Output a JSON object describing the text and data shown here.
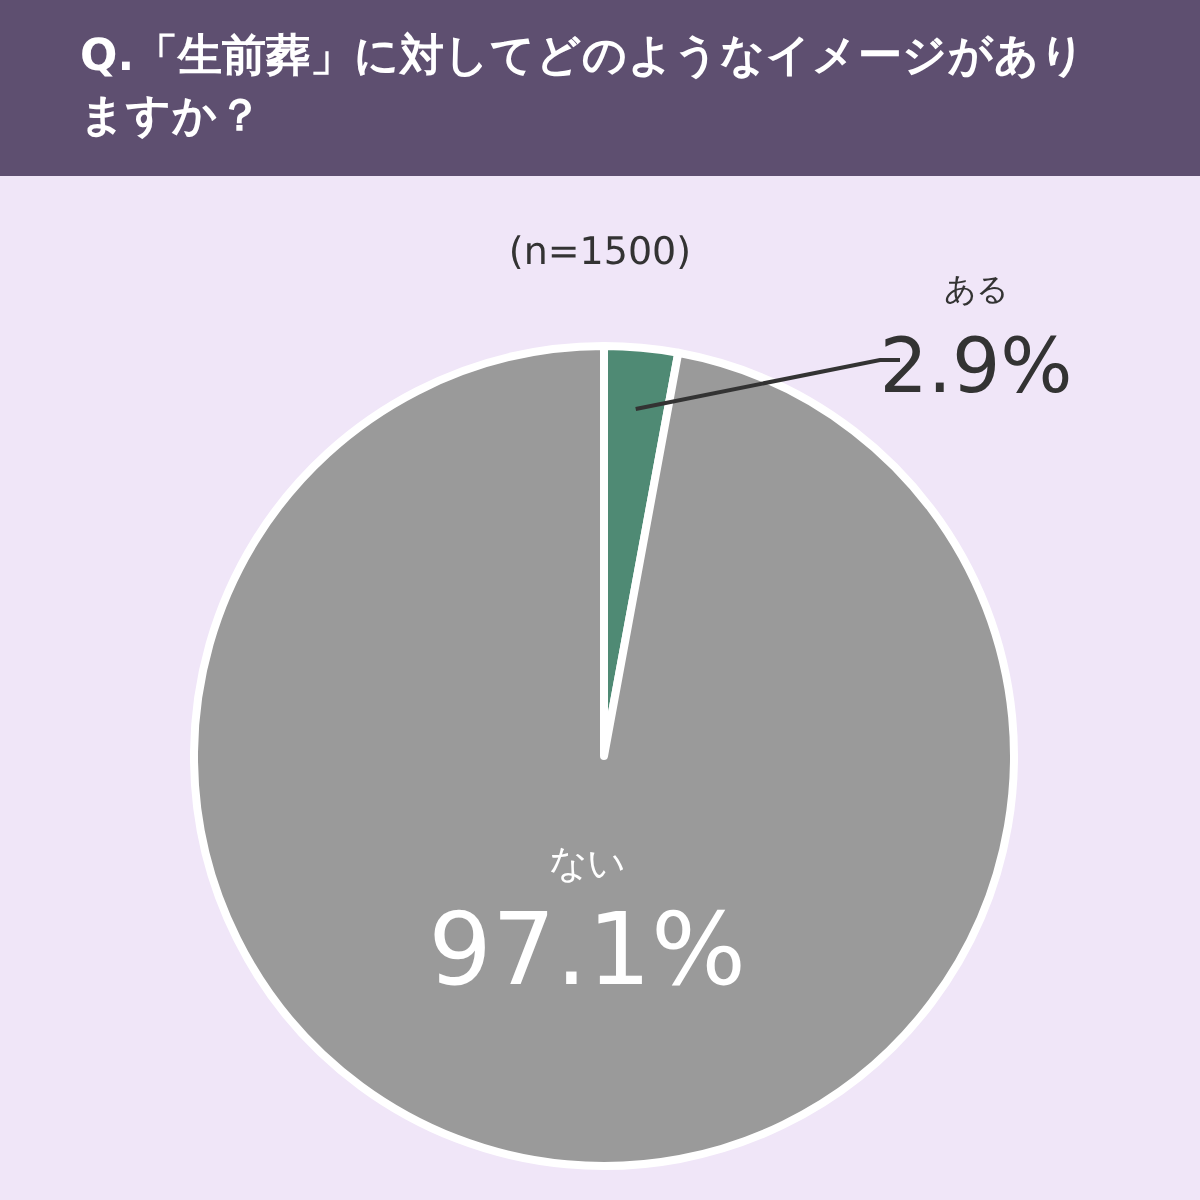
{
  "chart_data": {
    "type": "pie",
    "title": "Q.「生前葬」に対してどのようなイメージがありますか？",
    "subtitle": "(n=1500)",
    "categories": [
      "ある",
      "ない"
    ],
    "values": [
      2.9,
      97.1
    ],
    "colors": [
      "#4f8a74",
      "#9a9a9a"
    ],
    "value_labels": [
      "2.9%",
      "97.1%"
    ]
  }
}
